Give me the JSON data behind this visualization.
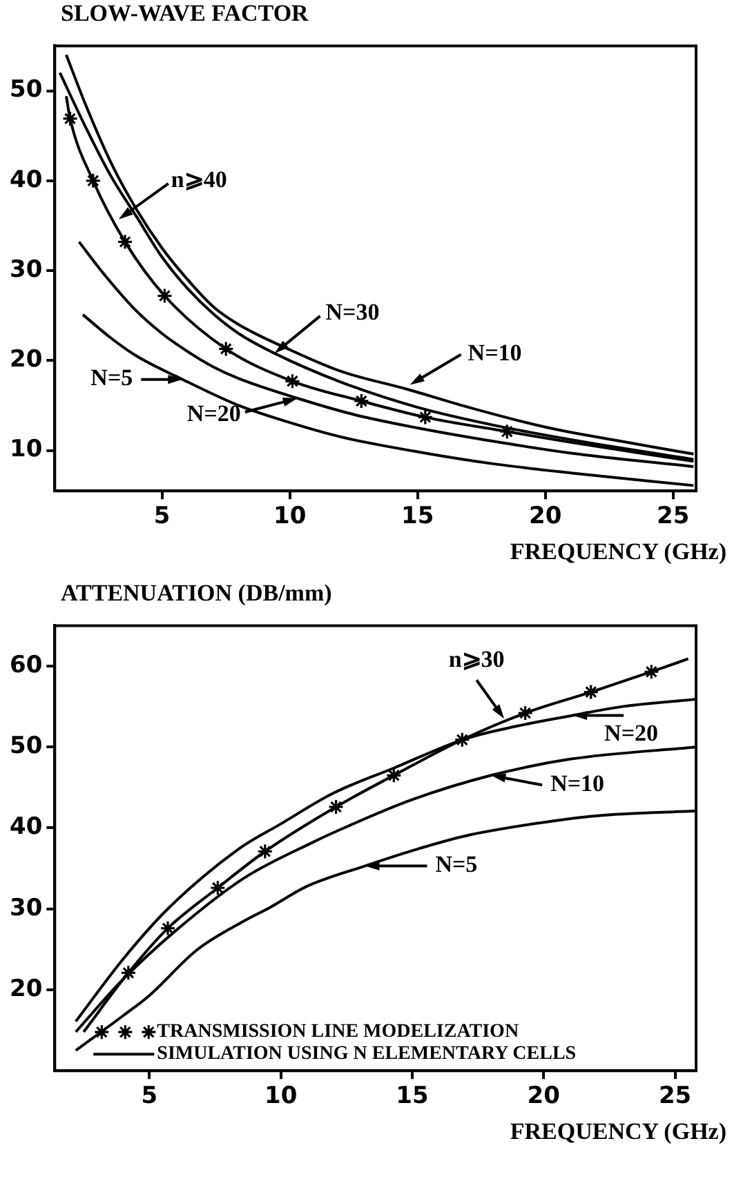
{
  "chart_data": [
    {
      "type": "line",
      "ylabel": "SLOW-WAVE FACTOR",
      "xlabel": "FREQUENCY (GHz)",
      "xlim": [
        0.8,
        25.9
      ],
      "ylim": [
        5.5,
        55
      ],
      "xticks": [
        5,
        10,
        15,
        20,
        25
      ],
      "yticks": [
        10,
        20,
        30,
        40,
        50
      ],
      "legend": false,
      "marker": "none",
      "line_style": "solid",
      "series": [
        {
          "color": "#000000",
          "x": [
            1.25,
            2,
            3,
            4,
            5,
            6,
            7,
            8,
            10,
            12,
            14.6,
            17,
            20,
            23,
            25.8
          ],
          "values": [
            54,
            48.5,
            42,
            36.8,
            32.5,
            29,
            26,
            24,
            21.2,
            18.8,
            16.8,
            14.8,
            12.6,
            11,
            9.6
          ]
        },
        {
          "color": "#000000",
          "x": [
            1,
            2,
            3,
            4,
            5,
            6,
            7,
            8,
            9.4,
            12,
            15,
            18,
            21,
            25.8
          ],
          "values": [
            52,
            46,
            40.5,
            36,
            31.5,
            28,
            25.2,
            23,
            20.8,
            17.6,
            14.8,
            12.8,
            11.2,
            9
          ]
        },
        {
          "color": "#000000",
          "x": [
            1.25,
            1.4,
            2.3,
            3.55,
            5.1,
            7.5,
            10.1,
            12.8,
            15.3,
            18.5,
            21,
            25.8
          ],
          "values": [
            49.4,
            46.9,
            40,
            33.2,
            27.2,
            21.3,
            17.7,
            15.5,
            13.7,
            12.1,
            10.9,
            8.8
          ]
        },
        {
          "color": "#000000",
          "x": [
            1.75,
            2.7,
            4,
            5,
            6,
            7,
            8,
            10.3,
            12.5,
            15,
            18,
            21,
            25.8
          ],
          "values": [
            33.2,
            29.7,
            25.5,
            23,
            21,
            19.3,
            18,
            15.8,
            14,
            12.5,
            11,
            9.7,
            8.2
          ]
        },
        {
          "color": "#000000",
          "x": [
            1.9,
            3,
            4,
            5.8,
            8,
            10,
            12,
            15.3,
            18,
            21,
            25.8
          ],
          "values": [
            25.1,
            22.5,
            20.5,
            17.9,
            15,
            13.1,
            11.5,
            9.7,
            8.5,
            7.5,
            6.1
          ]
        },
        {
          "type": "scatter",
          "marker": "cross",
          "color": "#000000",
          "x": [
            1.4,
            2.3,
            3.55,
            5.1,
            7.5,
            10.1,
            12.8,
            15.3,
            18.5
          ],
          "values": [
            46.9,
            40,
            33.2,
            27.2,
            21.3,
            17.7,
            15.5,
            13.7,
            12.1
          ]
        }
      ],
      "annotations": [
        {
          "text": "n⩾40",
          "x": 3.3,
          "y": 35.7
        },
        {
          "text": "N=30",
          "x": 9.4,
          "y": 20.8
        },
        {
          "text": "N=10",
          "x": 14.7,
          "y": 17.3
        },
        {
          "text": "N=20",
          "x": 10.3,
          "y": 15.8
        },
        {
          "text": "N=5",
          "x": 5.8,
          "y": 17.9
        }
      ]
    },
    {
      "type": "line",
      "ylabel": "ATTENUATION (DB/mm)",
      "xlabel": "FREQUENCY (GHz)",
      "xlim": [
        1.4,
        25.8
      ],
      "ylim": [
        10,
        65
      ],
      "xticks": [
        5,
        10,
        15,
        20,
        25
      ],
      "yticks": [
        20,
        30,
        40,
        50,
        60
      ],
      "legend": "bottom",
      "marker": "none",
      "line_style": "solid",
      "series": [
        {
          "color": "#000000",
          "x": [
            2.2,
            4,
            5.7,
            8.4,
            10,
            12,
            14.3,
            17,
            19,
            21.1,
            23,
            25.8
          ],
          "values": [
            16.1,
            23.8,
            30,
            37.4,
            40.5,
            44.3,
            47.4,
            51,
            52.6,
            53.9,
            55,
            55.9
          ]
        },
        {
          "color": "#000000",
          "x": [
            2.5,
            4.2,
            5.7,
            7.6,
            9.4,
            12.1,
            14.3,
            16.9,
            19.3,
            21.8,
            24.1,
            25.5
          ],
          "values": [
            14.8,
            22.1,
            27.6,
            32.6,
            37.1,
            42.6,
            46.5,
            50.9,
            54.2,
            56.8,
            59.3,
            60.9
          ]
        },
        {
          "color": "#000000",
          "x": [
            2.2,
            4,
            6,
            8.6,
            11.2,
            12.4,
            15,
            18,
            21,
            25.8
          ],
          "values": [
            14.8,
            21.3,
            27.3,
            33.8,
            38.2,
            40,
            43.5,
            46.5,
            48.5,
            50
          ]
        },
        {
          "color": "#000000",
          "x": [
            2.2,
            4,
            5,
            6.8,
            8.6,
            9.6,
            11,
            13.2,
            15,
            17,
            19.8,
            22,
            25.8
          ],
          "values": [
            12.5,
            16.8,
            19.3,
            24.9,
            28.5,
            30.2,
            32.8,
            35.3,
            37.2,
            39,
            40.6,
            41.5,
            42.1
          ]
        },
        {
          "type": "scatter",
          "marker": "cross",
          "name": "TRANSMISSION LINE MODELIZATION",
          "color": "#000000",
          "x": [
            4.2,
            5.7,
            7.6,
            9.4,
            12.1,
            14.3,
            16.9,
            19.3,
            21.8,
            24.1
          ],
          "values": [
            22.1,
            27.6,
            32.6,
            37.1,
            42.6,
            46.5,
            50.9,
            54.2,
            56.8,
            59.3
          ]
        }
      ],
      "annotations": [
        {
          "text": "n⩾30",
          "x": 18.5,
          "y": 53.5
        },
        {
          "text": "N=20",
          "x": 21.1,
          "y": 53.9
        },
        {
          "text": "N=10",
          "x": 18,
          "y": 46.5
        },
        {
          "text": "N=5",
          "x": 13.2,
          "y": 35.3
        },
        "SIMULATION USING N ELEMENTARY CELLS"
      ]
    }
  ]
}
